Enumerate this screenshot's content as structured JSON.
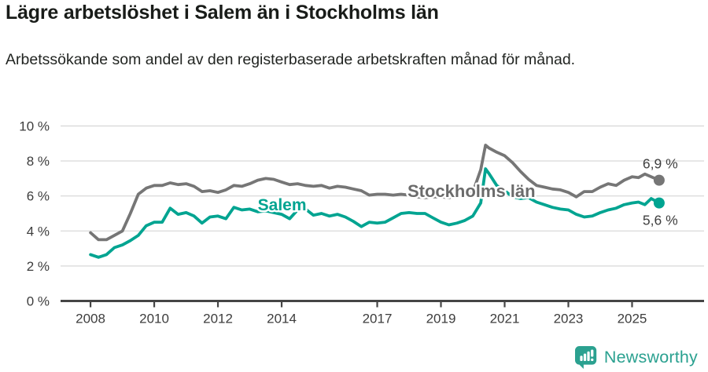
{
  "header": {
    "title": "Lägre arbetslöshet i Salem än i Stockholms län",
    "subtitle": "Arbetssökande som andel av den registerbaserade arbetskraften månad för månad."
  },
  "colors": {
    "salem": "#00a491",
    "stockholm": "#767676",
    "salem_label": "#00a491",
    "stockholm_label": "#6b6b6b",
    "axis": "#454545",
    "grid": "#dcdcdc",
    "tick_text": "#3d3d3d",
    "end_label_text": "#3f3f3f",
    "brand": "#2ba190"
  },
  "chart_data": {
    "type": "line",
    "title": "Lägre arbetslöshet i Salem än i Stockholms län",
    "subtitle": "Arbetssökande som andel av den registerbaserade arbetskraften månad för månad.",
    "xlabel": "",
    "ylabel": "",
    "ylim": [
      0,
      10
    ],
    "xlim": [
      2007.06,
      2027.26
    ],
    "grid": "horizontal",
    "legend_position": "inline",
    "yticks": [
      0,
      2,
      4,
      6,
      8,
      10
    ],
    "ytick_suffix": " %",
    "xticks": [
      2008,
      2010,
      2012,
      2014,
      2017,
      2019,
      2021,
      2023,
      2025
    ],
    "x": [
      2008,
      2008.25,
      2008.5,
      2008.75,
      2009,
      2009.25,
      2009.5,
      2009.75,
      2010,
      2010.25,
      2010.5,
      2010.75,
      2011,
      2011.25,
      2011.5,
      2011.75,
      2012,
      2012.25,
      2012.5,
      2012.75,
      2013,
      2013.25,
      2013.5,
      2013.75,
      2014,
      2014.25,
      2014.5,
      2014.75,
      2015,
      2015.25,
      2015.5,
      2015.75,
      2016,
      2016.25,
      2016.5,
      2016.75,
      2017,
      2017.25,
      2017.5,
      2017.75,
      2018,
      2018.25,
      2018.5,
      2018.75,
      2019,
      2019.25,
      2019.5,
      2019.75,
      2020,
      2020.25,
      2020.4,
      2020.5,
      2020.75,
      2021,
      2021.25,
      2021.5,
      2021.75,
      2022,
      2022.25,
      2022.5,
      2022.75,
      2023,
      2023.25,
      2023.5,
      2023.75,
      2024,
      2024.25,
      2024.5,
      2024.75,
      2025,
      2025.2,
      2025.4,
      2025.6,
      2025.85
    ],
    "series": [
      {
        "name": "Stockholms län",
        "color_key": "stockholm",
        "label_color_key": "stockholm_label",
        "end_label": "6,9 %",
        "end_value": 6.9,
        "end_label_pos": "above",
        "inline_label": {
          "text": "Stockholms län",
          "x": 2017.95,
          "y": 5.95,
          "size": 22
        },
        "values": [
          3.9,
          3.5,
          3.5,
          3.75,
          4.0,
          5.0,
          6.1,
          6.45,
          6.6,
          6.6,
          6.75,
          6.65,
          6.7,
          6.55,
          6.25,
          6.3,
          6.2,
          6.35,
          6.6,
          6.55,
          6.7,
          6.9,
          7.0,
          6.95,
          6.8,
          6.65,
          6.7,
          6.6,
          6.55,
          6.6,
          6.45,
          6.55,
          6.5,
          6.4,
          6.3,
          6.05,
          6.1,
          6.1,
          6.05,
          6.1,
          6.05,
          5.95,
          5.9,
          5.95,
          5.95,
          5.9,
          6.0,
          6.1,
          6.2,
          7.5,
          8.9,
          8.75,
          8.5,
          8.3,
          7.9,
          7.4,
          6.95,
          6.6,
          6.5,
          6.4,
          6.35,
          6.2,
          5.95,
          6.25,
          6.25,
          6.5,
          6.7,
          6.6,
          6.9,
          7.1,
          7.05,
          7.25,
          7.1,
          6.9
        ]
      },
      {
        "name": "Salem",
        "color_key": "salem",
        "label_color_key": "salem_label",
        "end_label": "5,6 %",
        "end_value": 5.6,
        "end_label_pos": "below",
        "inline_label": {
          "text": "Salem",
          "x": 2013.25,
          "y": 5.18,
          "size": 21
        },
        "values": [
          2.65,
          2.5,
          2.65,
          3.05,
          3.2,
          3.45,
          3.75,
          4.3,
          4.5,
          4.5,
          5.3,
          4.95,
          5.05,
          4.85,
          4.45,
          4.8,
          4.85,
          4.7,
          5.35,
          5.2,
          5.25,
          5.1,
          5.15,
          5.05,
          4.95,
          4.7,
          5.2,
          5.25,
          4.9,
          5.0,
          4.85,
          4.95,
          4.8,
          4.55,
          4.25,
          4.5,
          4.45,
          4.5,
          4.75,
          5.0,
          5.05,
          5.0,
          5.0,
          4.75,
          4.5,
          4.35,
          4.45,
          4.6,
          4.85,
          5.6,
          7.55,
          7.3,
          6.6,
          6.3,
          5.95,
          5.85,
          5.9,
          5.65,
          5.5,
          5.35,
          5.25,
          5.2,
          4.95,
          4.8,
          4.85,
          5.05,
          5.2,
          5.3,
          5.5,
          5.6,
          5.65,
          5.5,
          5.85,
          5.6
        ]
      }
    ]
  },
  "footer": {
    "brand": "Newsworthy",
    "logo_icon": "newsworthy-chart-bubble"
  }
}
